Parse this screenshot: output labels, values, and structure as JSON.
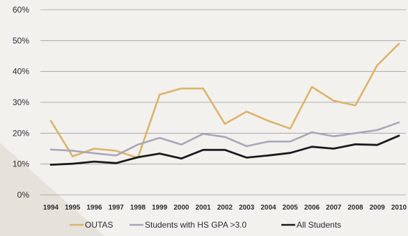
{
  "chart_data": {
    "type": "line",
    "x": [
      "1994",
      "1995",
      "1996",
      "1997",
      "1998",
      "1999",
      "2000",
      "2001",
      "2002",
      "2003",
      "2004",
      "2005",
      "2006",
      "2007",
      "2008",
      "2009",
      "2010"
    ],
    "ylim": [
      0,
      60
    ],
    "yticks": [
      "0%",
      "10%",
      "20%",
      "30%",
      "40%",
      "50%",
      "60%"
    ],
    "grid": true,
    "legend_position": "bottom",
    "series": [
      {
        "name": "OUTAS",
        "color": "#d9b46a",
        "values": [
          24,
          12.5,
          15,
          14.3,
          12,
          32.5,
          34.5,
          34.5,
          23,
          27,
          24,
          21.5,
          35,
          30.5,
          29,
          42,
          49
        ]
      },
      {
        "name": "Students with HS GPA >3.0",
        "color": "#a7a7b9",
        "values": [
          14.7,
          14.3,
          13.5,
          12.8,
          16.3,
          18.5,
          16.3,
          19.8,
          18.8,
          15.8,
          17.3,
          17.3,
          20.3,
          19,
          20,
          21,
          23.5
        ]
      },
      {
        "name": "All Students",
        "color": "#1a1a1a",
        "values": [
          9.8,
          10.1,
          10.8,
          10.3,
          12.2,
          13.4,
          11.8,
          14.6,
          14.6,
          12.1,
          12.8,
          13.6,
          15.6,
          15,
          16.4,
          16.2,
          19.2
        ]
      }
    ]
  }
}
